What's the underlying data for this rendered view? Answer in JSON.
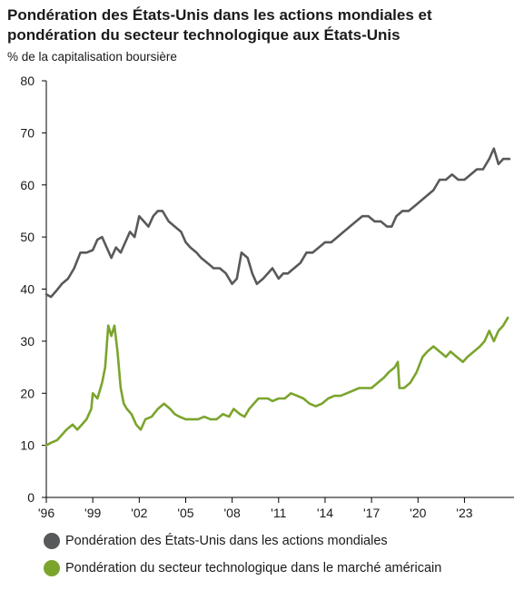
{
  "chart_data": {
    "type": "line",
    "title": "Pondération des États-Unis dans les actions mondiales et pondération du secteur technologique aux États-Unis",
    "ylabel": "% de la capitalisation boursière",
    "xlabel": "",
    "ylim": [
      0,
      80
    ],
    "yticks": [
      0,
      10,
      20,
      30,
      40,
      50,
      60,
      70,
      80
    ],
    "xlim": [
      1996,
      2026.2
    ],
    "xticks": [
      {
        "value": 1996,
        "label": "'96"
      },
      {
        "value": 1999,
        "label": "'99"
      },
      {
        "value": 2002,
        "label": "'02"
      },
      {
        "value": 2005,
        "label": "'05"
      },
      {
        "value": 2008,
        "label": "'08"
      },
      {
        "value": 2011,
        "label": "'11"
      },
      {
        "value": 2014,
        "label": "'14"
      },
      {
        "value": 2017,
        "label": "'17"
      },
      {
        "value": 2020,
        "label": "'20"
      },
      {
        "value": 2023,
        "label": "'23"
      }
    ],
    "grid": false,
    "legend_position": "bottom",
    "series": [
      {
        "name": "Pondération des États-Unis dans les actions mondiales",
        "color": "#58595b",
        "x": [
          1996.0,
          1996.3,
          1996.6,
          1997.0,
          1997.4,
          1997.8,
          1998.2,
          1998.6,
          1999.0,
          1999.3,
          1999.6,
          1999.9,
          2000.2,
          2000.5,
          2000.8,
          2001.1,
          2001.4,
          2001.7,
          2002.0,
          2002.3,
          2002.6,
          2002.9,
          2003.2,
          2003.5,
          2003.9,
          2004.3,
          2004.7,
          2005.0,
          2005.3,
          2005.7,
          2006.0,
          2006.4,
          2006.8,
          2007.2,
          2007.6,
          2008.0,
          2008.3,
          2008.6,
          2009.0,
          2009.3,
          2009.6,
          2010.0,
          2010.3,
          2010.6,
          2011.0,
          2011.3,
          2011.6,
          2012.0,
          2012.4,
          2012.8,
          2013.2,
          2013.6,
          2014.0,
          2014.4,
          2014.8,
          2015.2,
          2015.6,
          2016.0,
          2016.4,
          2016.8,
          2017.2,
          2017.6,
          2018.0,
          2018.3,
          2018.6,
          2019.0,
          2019.4,
          2019.8,
          2020.2,
          2020.6,
          2021.0,
          2021.4,
          2021.8,
          2022.2,
          2022.6,
          2023.0,
          2023.4,
          2023.8,
          2024.2,
          2024.6,
          2024.9,
          2025.2,
          2025.5,
          2025.9
        ],
        "values": [
          39,
          38.5,
          39.5,
          41,
          42,
          44,
          47,
          47,
          47.5,
          49.5,
          50,
          48,
          46,
          48,
          47,
          49,
          51,
          50,
          54,
          53,
          52,
          54,
          55,
          55,
          53,
          52,
          51,
          49,
          48,
          47,
          46,
          45,
          44,
          44,
          43,
          41,
          42,
          47,
          46,
          43,
          41,
          42,
          43,
          44,
          42,
          43,
          43,
          44,
          45,
          47,
          47,
          48,
          49,
          49,
          50,
          51,
          52,
          53,
          54,
          54,
          53,
          53,
          52,
          52,
          54,
          55,
          55,
          56,
          57,
          58,
          59,
          61,
          61,
          62,
          61,
          61,
          62,
          63,
          63,
          65,
          67,
          64,
          65,
          65
        ]
      },
      {
        "name": "Pondération du secteur technologique dans le marché américain",
        "color": "#7ba42d",
        "x": [
          1996.0,
          1996.3,
          1996.7,
          1997.0,
          1997.3,
          1997.7,
          1998.0,
          1998.3,
          1998.6,
          1998.9,
          1999.0,
          1999.3,
          1999.6,
          1999.8,
          2000.0,
          2000.2,
          2000.4,
          2000.6,
          2000.8,
          2001.0,
          2001.2,
          2001.5,
          2001.8,
          2002.1,
          2002.4,
          2002.8,
          2003.2,
          2003.6,
          2004.0,
          2004.3,
          2004.6,
          2005.0,
          2005.4,
          2005.8,
          2006.2,
          2006.6,
          2007.0,
          2007.4,
          2007.8,
          2008.1,
          2008.5,
          2008.8,
          2009.1,
          2009.4,
          2009.7,
          2010.0,
          2010.3,
          2010.6,
          2011.0,
          2011.4,
          2011.8,
          2012.2,
          2012.6,
          2013.0,
          2013.4,
          2013.8,
          2014.2,
          2014.6,
          2015.0,
          2015.4,
          2015.8,
          2016.2,
          2016.6,
          2017.0,
          2017.4,
          2017.8,
          2018.1,
          2018.5,
          2018.7,
          2018.8,
          2019.1,
          2019.5,
          2019.9,
          2020.3,
          2020.6,
          2021.0,
          2021.4,
          2021.8,
          2022.1,
          2022.5,
          2022.9,
          2023.2,
          2023.6,
          2024.0,
          2024.3,
          2024.6,
          2024.9,
          2025.2,
          2025.5,
          2025.8
        ],
        "values": [
          10,
          10.5,
          11,
          12,
          13,
          14,
          13,
          14,
          15,
          17,
          20,
          19,
          22,
          25,
          33,
          31,
          33,
          28,
          21,
          18,
          17,
          16,
          14,
          13,
          15,
          15.5,
          17,
          18,
          17,
          16,
          15.5,
          15,
          15,
          15,
          15.5,
          15,
          15,
          16,
          15.5,
          17,
          16,
          15.5,
          17,
          18,
          19,
          19,
          19,
          18.5,
          19,
          19,
          20,
          19.5,
          19,
          18,
          17.5,
          18,
          19,
          19.5,
          19.5,
          20,
          20.5,
          21,
          21,
          21,
          22,
          23,
          24,
          25,
          26,
          21,
          21,
          22,
          24,
          27,
          28,
          29,
          28,
          27,
          28,
          27,
          26,
          27,
          28,
          29,
          30,
          32,
          30,
          32,
          33,
          34.5
        ]
      }
    ]
  }
}
